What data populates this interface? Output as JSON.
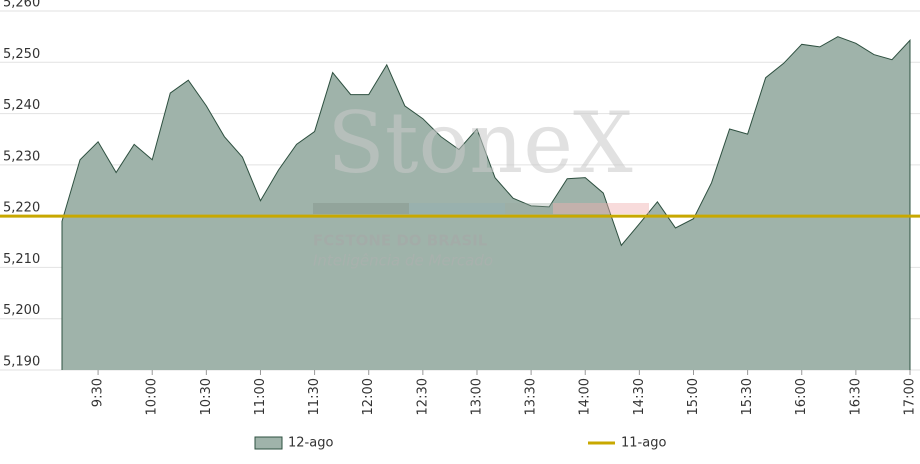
{
  "chart_data": {
    "type": "area",
    "watermark": {
      "brand": "StoneX",
      "company": "FCSTONE DO BRASIL",
      "tagline": "Inteligência de Mercado"
    },
    "categories": [
      null,
      null,
      "9:30",
      null,
      null,
      "10:00",
      null,
      null,
      "10:30",
      null,
      null,
      "11:00",
      null,
      null,
      "11:30",
      null,
      null,
      "12:00",
      null,
      null,
      "12:30",
      null,
      null,
      "13:00",
      null,
      null,
      "13:30",
      null,
      null,
      "14:00",
      null,
      null,
      "14:30",
      null,
      null,
      "15:00",
      null,
      null,
      "15:30",
      null,
      null,
      "16:00",
      null,
      null,
      "16:30",
      null,
      null,
      "17:00"
    ],
    "series": [
      {
        "name": "12-ago",
        "color": "#9fb3aa",
        "line_color": "#2e5040",
        "values": [
          5.219,
          5.231,
          5.2345,
          5.2285,
          5.234,
          5.231,
          5.244,
          5.2465,
          5.2415,
          5.2355,
          5.2315,
          5.223,
          5.229,
          5.234,
          5.2365,
          5.248,
          5.2437,
          5.2437,
          5.2495,
          5.2415,
          5.239,
          5.2355,
          5.233,
          5.237,
          5.2275,
          5.2235,
          5.222,
          5.2218,
          5.2273,
          5.2275,
          5.2245,
          5.2143,
          5.2185,
          5.2228,
          5.2177,
          5.2195,
          5.2265,
          5.237,
          5.236,
          5.247,
          5.2498,
          5.2535,
          5.253,
          5.255,
          5.2537,
          5.2515,
          5.2505,
          5.2543
        ]
      },
      {
        "name": "11-ago",
        "color": "#c8a800",
        "style": "line",
        "values": [
          5.22,
          5.22,
          5.22,
          5.22,
          5.22,
          5.22,
          5.22,
          5.22,
          5.22,
          5.22,
          5.22,
          5.22,
          5.22,
          5.22,
          5.22,
          5.22,
          5.22,
          5.22,
          5.22,
          5.22,
          5.22,
          5.22,
          5.22,
          5.22,
          5.22,
          5.22,
          5.22,
          5.22,
          5.22,
          5.22,
          5.22,
          5.22,
          5.22,
          5.22,
          5.22,
          5.22,
          5.22,
          5.22,
          5.22,
          5.22,
          5.22,
          5.22,
          5.22,
          5.22,
          5.22,
          5.22,
          5.22,
          5.22
        ]
      }
    ],
    "ylim": [
      5.19,
      5.26
    ],
    "yticks": [
      {
        "value": 5.19,
        "label": "5,190"
      },
      {
        "value": 5.2,
        "label": "5,200"
      },
      {
        "value": 5.21,
        "label": "5,210"
      },
      {
        "value": 5.22,
        "label": "5,220"
      },
      {
        "value": 5.23,
        "label": "5,230"
      },
      {
        "value": 5.24,
        "label": "5,240"
      },
      {
        "value": 5.25,
        "label": "5,250"
      },
      {
        "value": 5.26,
        "label": "5,260"
      }
    ],
    "grid": true,
    "legend": "bottom"
  }
}
